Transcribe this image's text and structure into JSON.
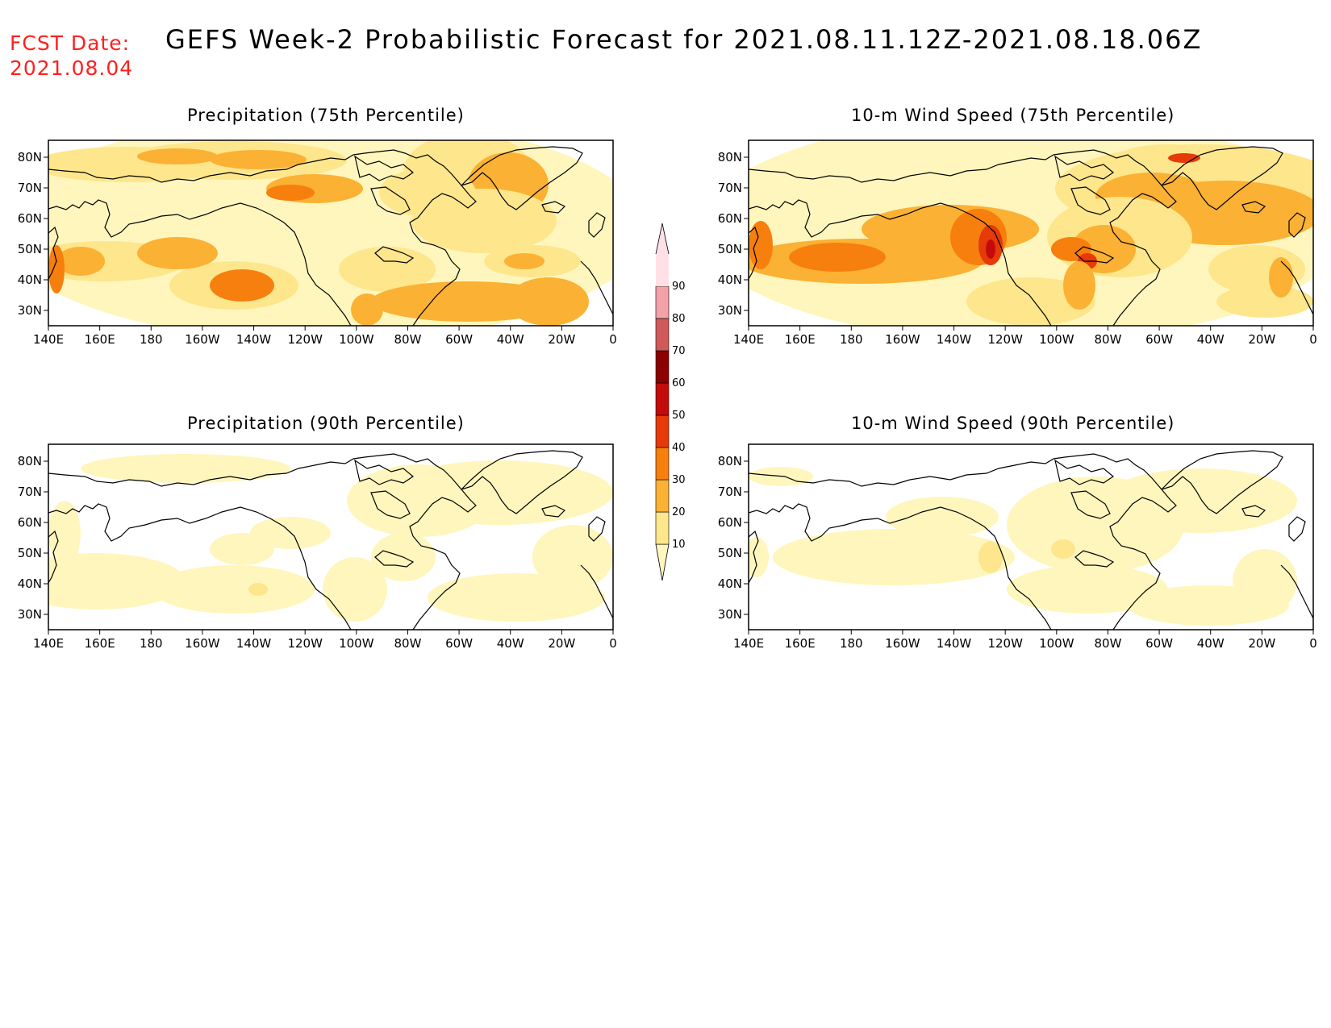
{
  "header": {
    "fcst_label": "FCST Date:",
    "fcst_date": "2021.08.04",
    "title": "GEFS Week-2 Probabilistic Forecast for 2021.08.11.12Z-2021.08.18.06Z"
  },
  "panels": [
    {
      "title": "Precipitation (75th Percentile)",
      "intensity": "high"
    },
    {
      "title": "10-m Wind Speed (75th Percentile)",
      "intensity": "high"
    },
    {
      "title": "Precipitation (90th Percentile)",
      "intensity": "low"
    },
    {
      "title": "10-m Wind Speed (90th Percentile)",
      "intensity": "low"
    }
  ],
  "axes": {
    "lon_labels": [
      "140E",
      "160E",
      "180",
      "160W",
      "140W",
      "120W",
      "100W",
      "80W",
      "60W",
      "40W",
      "20W",
      "0"
    ],
    "lat_labels": [
      "80N",
      "70N",
      "60N",
      "50N",
      "40N",
      "30N"
    ]
  },
  "colorbar": {
    "levels": [
      "10",
      "20",
      "30",
      "40",
      "50",
      "60",
      "70",
      "80",
      "90"
    ],
    "colors": [
      "#fff6bd",
      "#fde68c",
      "#fbb133",
      "#f67f0e",
      "#e63a08",
      "#c40b0b",
      "#8c0000",
      "#d05a5a",
      "#f2a2a8",
      "#ffe0e6"
    ]
  },
  "colors": {
    "fill_10_20": "#fff6bd",
    "fill_20_30": "#fde68c",
    "fill_30_40": "#fbb133",
    "fill_40_50": "#f67f0e",
    "fill_50_60": "#e63a08",
    "fill_60_70": "#c40b0b",
    "fcst_text": "#ff2020"
  }
}
